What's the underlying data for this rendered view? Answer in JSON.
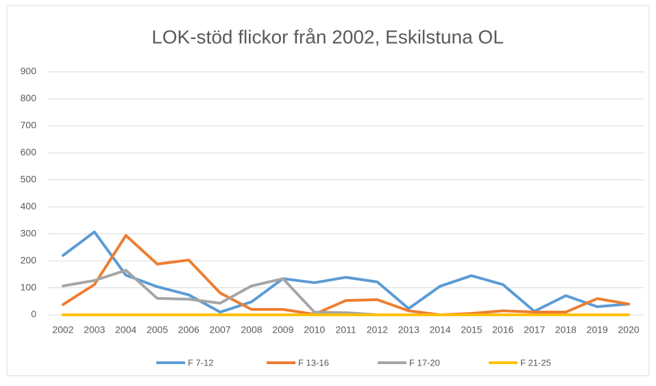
{
  "chart_data": {
    "type": "line",
    "title": "LOK-stöd flickor från 2002, Eskilstuna OL",
    "categories": [
      "2002",
      "2003",
      "2004",
      "2005",
      "2006",
      "2007",
      "2008",
      "2009",
      "2010",
      "2011",
      "2012",
      "2013",
      "2014",
      "2015",
      "2016",
      "2017",
      "2018",
      "2019",
      "2020"
    ],
    "series": [
      {
        "name": "F 7-12",
        "color": "#5b9bd5",
        "values": [
          220,
          307,
          147,
          104,
          74,
          10,
          48,
          134,
          119,
          139,
          122,
          23,
          106,
          145,
          112,
          13,
          71,
          30,
          40
        ]
      },
      {
        "name": "F 13-16",
        "color": "#ed7d31",
        "values": [
          38,
          112,
          294,
          188,
          203,
          81,
          20,
          20,
          2,
          53,
          56,
          15,
          0,
          5,
          15,
          10,
          10,
          60,
          40
        ]
      },
      {
        "name": "F 17-20",
        "color": "#a5a5a5",
        "values": [
          107,
          127,
          165,
          61,
          58,
          43,
          107,
          134,
          10,
          8,
          0,
          0,
          0,
          0,
          0,
          0,
          0,
          0,
          0
        ]
      },
      {
        "name": "F 21-25",
        "color": "#ffc000",
        "values": [
          0,
          0,
          0,
          0,
          0,
          0,
          0,
          0,
          0,
          0,
          0,
          0,
          0,
          0,
          0,
          0,
          0,
          0,
          0
        ]
      }
    ],
    "ylim": [
      0,
      900
    ],
    "yticks": [
      0,
      100,
      200,
      300,
      400,
      500,
      600,
      700,
      800,
      900
    ],
    "grid": true
  }
}
